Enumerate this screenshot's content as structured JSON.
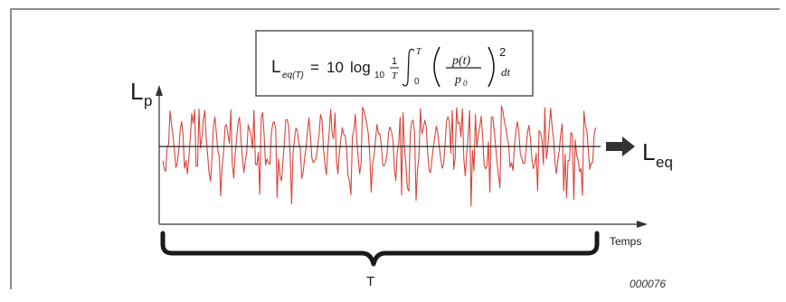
{
  "formula": {
    "lhs_L": "L",
    "lhs_sub": "eq(T)",
    "equals": "=",
    "coef": "10",
    "log": "log",
    "log_sub": "10",
    "frac_num": "1",
    "frac_den": "T",
    "int_upper": "T",
    "int_lower": "0",
    "ratio_num": "p(t)",
    "ratio_den": "p",
    "ratio_den_sub": "0",
    "exponent": "2",
    "dt": "dt"
  },
  "axes": {
    "y_label": "L",
    "y_label_sub": "p",
    "x_label": "Temps"
  },
  "level_line": {
    "label": "L",
    "label_sub": "eq"
  },
  "period": {
    "label": "T"
  },
  "figure_code": "000076",
  "colors": {
    "signal": "#d9453c",
    "ink": "#1a1a1a",
    "frame": "#5a5a5a"
  }
}
